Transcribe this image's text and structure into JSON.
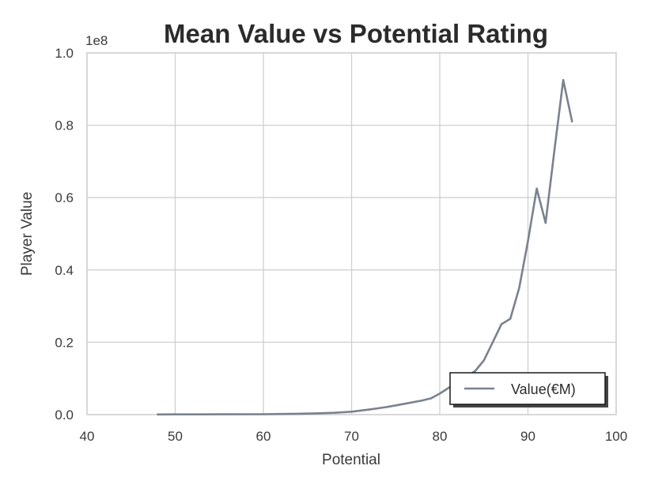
{
  "chart_data": {
    "type": "line",
    "title": "Mean Value vs Potential Rating",
    "xlabel": "Potential",
    "ylabel": "Player Value",
    "y_offset_label": "1e8",
    "xlim": [
      40,
      100
    ],
    "ylim": [
      0,
      1.0
    ],
    "x_ticks": [
      "40",
      "50",
      "60",
      "70",
      "80",
      "90",
      "100"
    ],
    "y_ticks": [
      "0.0",
      "0.2",
      "0.4",
      "0.6",
      "0.8",
      "1.0"
    ],
    "grid": true,
    "legend_position": "lower-right",
    "colors": {
      "line": "#7a828f",
      "grid": "#d0d0d0",
      "frame": "#cfcfcf"
    },
    "series": [
      {
        "name": "Value(€M)",
        "x": [
          48,
          50,
          55,
          60,
          62,
          64,
          66,
          68,
          70,
          72,
          74,
          76,
          78,
          79,
          80,
          81,
          82,
          83,
          84,
          85,
          86,
          87,
          88,
          89,
          90,
          91,
          92,
          93,
          94,
          95
        ],
        "y": [
          0.0005,
          0.0006,
          0.0008,
          0.0012,
          0.0018,
          0.0025,
          0.0035,
          0.005,
          0.008,
          0.014,
          0.021,
          0.03,
          0.039,
          0.045,
          0.058,
          0.074,
          0.09,
          0.105,
          0.12,
          0.15,
          0.2,
          0.25,
          0.265,
          0.35,
          0.48,
          0.625,
          0.53,
          0.73,
          0.925,
          0.81
        ]
      }
    ]
  }
}
